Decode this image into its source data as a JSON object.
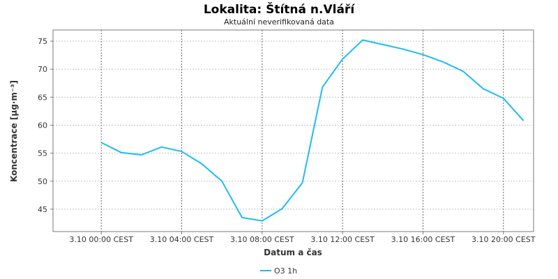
{
  "chart_data": {
    "type": "line",
    "title": "Lokalita: Štítná n.Vláří",
    "subtitle": "Aktuální neverifikovaná data",
    "xlabel": "Datum a čas",
    "ylabel": "Koncentrace [µg·m⁻³]",
    "x_range_hours": [
      -2.4,
      21.5
    ],
    "ylim": [
      41,
      77
    ],
    "y_ticks": [
      45,
      50,
      55,
      60,
      65,
      70,
      75
    ],
    "x_ticks": [
      {
        "hour": 0,
        "label": "3.10 00:00 CEST"
      },
      {
        "hour": 4,
        "label": "3.10 04:00 CEST"
      },
      {
        "hour": 8,
        "label": "3.10 08:00 CEST"
      },
      {
        "hour": 12,
        "label": "3.10 12:00 CEST"
      },
      {
        "hour": 16,
        "label": "3.10 16:00 CEST"
      },
      {
        "hour": 20,
        "label": "3.10 20:00 CEST"
      }
    ],
    "grid": true,
    "legend_position": "bottom",
    "series": [
      {
        "name": "O3 1h",
        "color": "#1ebcf0",
        "x": [
          0,
          1,
          2,
          3,
          4,
          5,
          6,
          7,
          8,
          9,
          10,
          11,
          12,
          13,
          14,
          15,
          16,
          17,
          18,
          19,
          20,
          21
        ],
        "values": [
          56.9,
          55.1,
          54.7,
          56.1,
          55.3,
          53.1,
          50.0,
          43.5,
          42.9,
          45.1,
          49.7,
          66.8,
          71.8,
          75.2,
          74.4,
          73.6,
          72.6,
          71.3,
          69.6,
          66.5,
          64.8,
          60.8
        ]
      }
    ]
  }
}
